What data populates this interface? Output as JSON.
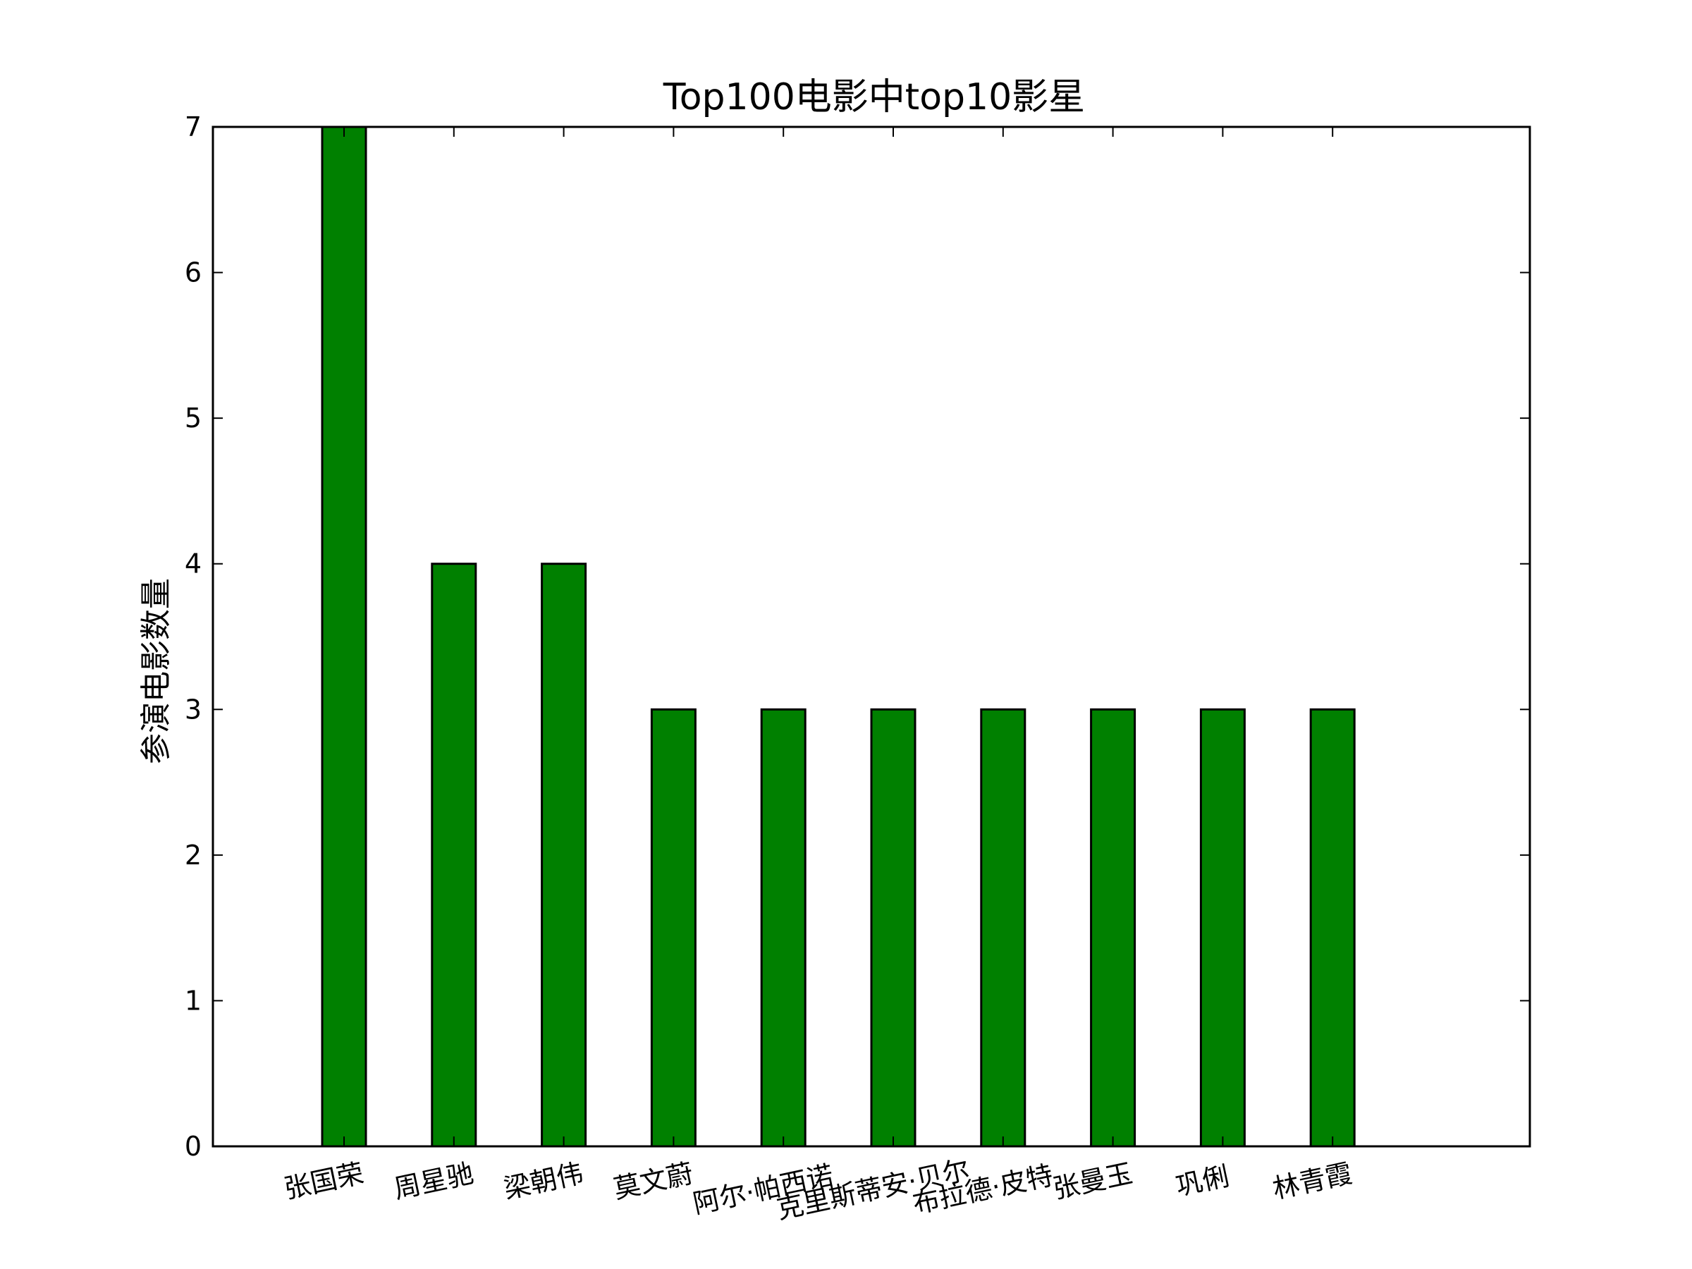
{
  "chart_data": {
    "type": "bar",
    "title": "Top100电影中top10影星",
    "xlabel": "",
    "ylabel": "参演电影数量",
    "categories": [
      "张国荣",
      "周星驰",
      "梁朝伟",
      "莫文蔚",
      "阿尔·帕西诺",
      "克里斯蒂安·贝尔",
      "布拉德·皮特",
      "张曼玉",
      "巩俐",
      "林青霞"
    ],
    "values": [
      7,
      4,
      4,
      3,
      3,
      3,
      3,
      3,
      3,
      3
    ],
    "ylim": [
      0,
      7
    ],
    "yticks": [
      "0",
      "1",
      "2",
      "3",
      "4",
      "5",
      "6",
      "7"
    ],
    "bar_color": "#008000",
    "edge_color": "#000000",
    "grid": false,
    "xtick_rotation": "slanted"
  }
}
